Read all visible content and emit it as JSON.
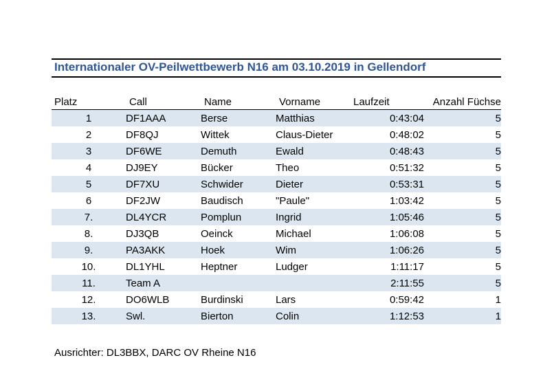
{
  "document": {
    "title": "Internationaler OV-Peilwettbewerb N16 am 03.10.2019 in Gellendorf",
    "footer": "Ausrichter: DL3BBX, DARC OV Rheine N16",
    "colors": {
      "title": "#2f5597",
      "row_stripe": "#dce6f1"
    }
  },
  "table": {
    "headers": {
      "platz": "Platz",
      "call": "Call",
      "name": "Name",
      "vorname": "Vorname",
      "laufzeit": "Laufzeit",
      "anzahl": "Anzahl Füchse"
    },
    "rows": [
      {
        "platz": "1",
        "call": "DF1AAA",
        "name": "Berse",
        "vorname": "Matthias",
        "laufzeit": "0:43:04",
        "anzahl": "5"
      },
      {
        "platz": "2",
        "call": "DF8QJ",
        "name": "Wittek",
        "vorname": "Claus-Dieter",
        "laufzeit": "0:48:02",
        "anzahl": "5"
      },
      {
        "platz": "3",
        "call": "DF6WE",
        "name": "Demuth",
        "vorname": "Ewald",
        "laufzeit": "0:48:43",
        "anzahl": "5"
      },
      {
        "platz": "4",
        "call": "DJ9EY",
        "name": "Bücker",
        "vorname": "Theo",
        "laufzeit": "0:51:32",
        "anzahl": "5"
      },
      {
        "platz": "5",
        "call": "DF7XU",
        "name": "Schwider",
        "vorname": "Dieter",
        "laufzeit": "0:53:31",
        "anzahl": "5"
      },
      {
        "platz": "6",
        "call": "DF2JW",
        "name": "Baudisch",
        "vorname": "\"Paule\"",
        "laufzeit": "1:03:42",
        "anzahl": "5"
      },
      {
        "platz": "7.",
        "call": "DL4YCR",
        "name": "Pomplun",
        "vorname": "Ingrid",
        "laufzeit": "1:05:46",
        "anzahl": "5"
      },
      {
        "platz": "8.",
        "call": "DJ3QB",
        "name": "Oeinck",
        "vorname": "Michael",
        "laufzeit": "1:06:08",
        "anzahl": "5"
      },
      {
        "platz": "9.",
        "call": "PA3AKK",
        "name": "Hoek",
        "vorname": "Wim",
        "laufzeit": "1:06:26",
        "anzahl": "5"
      },
      {
        "platz": "10.",
        "call": "DL1YHL",
        "name": "Heptner",
        "vorname": "Ludger",
        "laufzeit": "1:11:17",
        "anzahl": "5"
      },
      {
        "platz": "11.",
        "call": "Team A",
        "name": "",
        "vorname": "",
        "laufzeit": "2:11:55",
        "anzahl": "5"
      },
      {
        "platz": "12.",
        "call": "DO6WLB",
        "name": "Burdinski",
        "vorname": "Lars",
        "laufzeit": "0:59:42",
        "anzahl": "1"
      },
      {
        "platz": "13.",
        "call": "Swl.",
        "name": "Bierton",
        "vorname": "Colin",
        "laufzeit": "1:12:53",
        "anzahl": "1"
      }
    ]
  }
}
